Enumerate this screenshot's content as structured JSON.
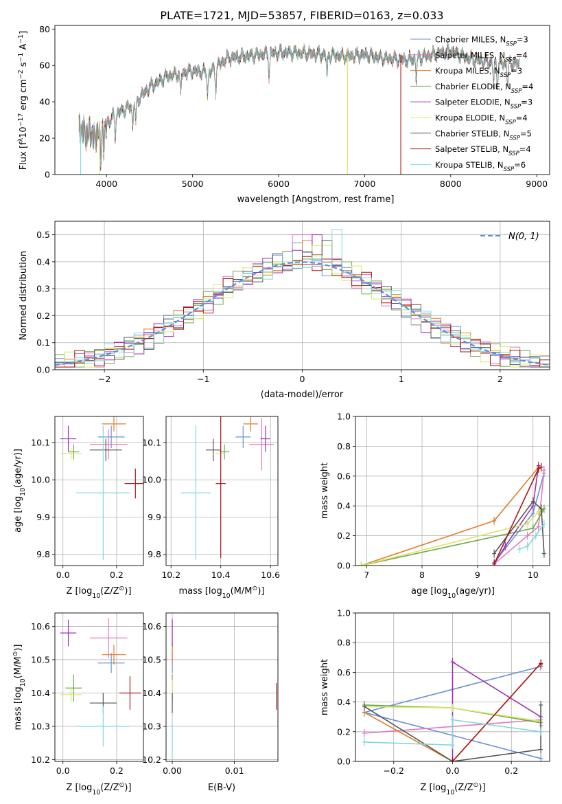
{
  "title": "PLATE=1721, MJD=53857, FIBERID=0163, z=0.033",
  "colors": [
    "#6a8fd8",
    "#e377c2",
    "#e07b2a",
    "#6aa84f",
    "#9b30b0",
    "#d8e860",
    "#555555",
    "#aa1515",
    "#80d8dc"
  ],
  "chart_data": [
    {
      "type": "line",
      "name": "spectrum",
      "xlabel": "wavelength [Angstrom, rest frame]",
      "ylabel": "Flux [f",
      "ylabel_parts": [
        "Flux [f",
        "λ",
        "10",
        "−17",
        " erg cm",
        "−2",
        " s",
        "−1",
        " A",
        "−1",
        "]"
      ],
      "xlim": [
        3400,
        9150
      ],
      "ylim": [
        0,
        82
      ],
      "xticks": [
        4000,
        5000,
        6000,
        7000,
        8000,
        9000
      ],
      "yticks": [
        0,
        20,
        40,
        60,
        80
      ],
      "grid": false,
      "legend": "upper right",
      "series": [
        {
          "name": "Chabrier MILES, N",
          "sub": "SSP",
          "suffix": "=3"
        },
        {
          "name": "Salpeter MILES, N",
          "sub": "SSP",
          "suffix": "=4"
        },
        {
          "name": "Kroupa MILES, N",
          "sub": "SSP",
          "suffix": "=3"
        },
        {
          "name": "Chabrier ELODIE, N",
          "sub": "SSP",
          "suffix": "=4"
        },
        {
          "name": "Salpeter ELODIE, N",
          "sub": "SSP",
          "suffix": "=3"
        },
        {
          "name": "Kroupa ELODIE, N",
          "sub": "SSP",
          "suffix": "=4"
        },
        {
          "name": "Chabrier STELIB, N",
          "sub": "SSP",
          "suffix": "=5"
        },
        {
          "name": "Salpeter STELIB, N",
          "sub": "SSP",
          "suffix": "=4"
        },
        {
          "name": "Kroupa STELIB, N",
          "sub": "SSP",
          "suffix": "=6"
        }
      ],
      "continuum": {
        "x": [
          3680,
          3800,
          3900,
          4000,
          4100,
          4300,
          4500,
          4700,
          5000,
          5200,
          5400,
          5600,
          5800,
          6000,
          6200,
          6500,
          6800,
          7000,
          7200,
          7500,
          7800,
          8000,
          8200,
          8400,
          8600,
          8800
        ],
        "y": [
          25,
          22,
          21,
          28,
          33,
          38,
          48,
          54,
          57,
          56,
          64,
          65,
          66,
          67,
          67,
          66,
          65,
          66,
          64,
          63,
          66,
          68,
          64,
          62,
          61,
          61
        ]
      },
      "absorption_lines": [
        3934,
        3969,
        4102,
        4304,
        4341,
        4861,
        5175,
        5270,
        5890,
        6563,
        7600,
        8498,
        8542,
        8662
      ],
      "dropouts": [
        {
          "x": 3700,
          "series": 8
        },
        {
          "x": 3920,
          "series": 5
        },
        {
          "x": 6800,
          "series": 5
        },
        {
          "x": 7420,
          "series": 7
        }
      ]
    },
    {
      "type": "line",
      "name": "residual_histogram",
      "xlabel": "(data-model)/error",
      "ylabel": "Normed distribution",
      "xlim": [
        -2.5,
        2.5
      ],
      "ylim": [
        0,
        0.55
      ],
      "xticks": [
        -2,
        -1,
        0,
        1,
        2
      ],
      "yticks": [
        0.0,
        0.1,
        0.2,
        0.3,
        0.4,
        0.5
      ],
      "grid": true,
      "legend": "upper right",
      "legend_label": "N(0, 1)",
      "gaussian": {
        "mu": 0,
        "sigma": 1
      },
      "bin_width": 0.1,
      "peaks": [
        0.47,
        0.5,
        0.48,
        0.41,
        0.5,
        0.46,
        0.48,
        0.41,
        0.52
      ],
      "tail": 0.02
    },
    {
      "type": "scatter",
      "name": "age_vs_Z",
      "xlabel": "Z [log",
      "xlabel_parts": [
        "Z [log",
        "10",
        "(Z/Z",
        "⊙",
        ")]"
      ],
      "ylabel": "age  [log",
      "ylabel_parts": [
        "age  [log",
        "10",
        "(age/yr)]"
      ],
      "xlim": [
        -0.03,
        0.3
      ],
      "ylim": [
        9.77,
        10.17
      ],
      "xticks": [
        0.0,
        0.2
      ],
      "yticks": [
        9.8,
        9.9,
        10.0,
        10.1
      ],
      "grid": true,
      "points": [
        {
          "x": 0.18,
          "y": 10.115,
          "xerr": 0.05,
          "yerr": 0.03
        },
        {
          "x": 0.17,
          "y": 10.095,
          "xerr": 0.07,
          "yerr": 0.04
        },
        {
          "x": 0.19,
          "y": 10.15,
          "xerr": 0.045,
          "yerr": 0.02
        },
        {
          "x": 0.04,
          "y": 10.075,
          "xerr": 0.02,
          "yerr": 0.02
        },
        {
          "x": 0.02,
          "y": 10.11,
          "xerr": 0.03,
          "yerr": 0.035
        },
        {
          "x": 0.03,
          "y": 10.07,
          "xerr": 0.04,
          "yerr": 0.015
        },
        {
          "x": 0.16,
          "y": 10.08,
          "xerr": 0.06,
          "yerr": 0.03
        },
        {
          "x": 0.27,
          "y": 9.99,
          "xerr": 0.04,
          "yerr": 0.04
        },
        {
          "x": 0.15,
          "y": 9.965,
          "xerr": 0.1,
          "yerr": 0.18
        }
      ]
    },
    {
      "type": "scatter",
      "name": "age_vs_mass",
      "xlabel": "mass [log",
      "xlabel_parts": [
        "mass [log",
        "10",
        "(M/M",
        "⊙",
        ")]"
      ],
      "xlim": [
        10.18,
        10.63
      ],
      "ylim": [
        9.77,
        10.17
      ],
      "xticks": [
        10.2,
        10.4,
        10.6
      ],
      "yticks": [
        9.8,
        9.9,
        10.0,
        10.1
      ],
      "grid": true,
      "points": [
        {
          "x": 10.49,
          "y": 10.115,
          "xerr": 0.03,
          "yerr": 0.03
        },
        {
          "x": 10.565,
          "y": 10.095,
          "xerr": 0.05,
          "yerr": 0.07
        },
        {
          "x": 10.52,
          "y": 10.15,
          "xerr": 0.03,
          "yerr": 0.02
        },
        {
          "x": 10.415,
          "y": 10.075,
          "xerr": 0.02,
          "yerr": 0.02
        },
        {
          "x": 10.58,
          "y": 10.11,
          "xerr": 0.02,
          "yerr": 0.035
        },
        {
          "x": 10.4,
          "y": 10.07,
          "xerr": 0.02,
          "yerr": 0.015
        },
        {
          "x": 10.37,
          "y": 10.08,
          "xerr": 0.03,
          "yerr": 0.03
        },
        {
          "x": 10.4,
          "y": 9.99,
          "xerr": 0.02,
          "yerr": 0.2
        },
        {
          "x": 10.3,
          "y": 9.965,
          "xerr": 0.06,
          "yerr": 0.18
        }
      ]
    },
    {
      "type": "line",
      "name": "mass_weight_vs_age",
      "xlabel": "age  [log",
      "xlabel_parts": [
        "age  [log",
        "10",
        "(age/yr)]"
      ],
      "ylabel": "mass weight",
      "xlim": [
        6.8,
        10.3
      ],
      "ylim": [
        0,
        1
      ],
      "xticks": [
        7,
        8,
        9,
        10
      ],
      "yticks": [
        0.0,
        0.2,
        0.4,
        0.6,
        0.8,
        1.0
      ],
      "grid": true,
      "series": [
        {
          "x": [
            9.3,
            10.0,
            10.2
          ],
          "y": [
            0.02,
            0.35,
            0.62
          ]
        },
        {
          "x": [
            9.3,
            9.9,
            10.1,
            10.2
          ],
          "y": [
            0.01,
            0.2,
            0.26,
            0.64
          ]
        },
        {
          "x": [
            6.9,
            9.3,
            10.1
          ],
          "y": [
            0.0,
            0.3,
            0.66
          ]
        },
        {
          "x": [
            6.9,
            10.0,
            10.2,
            10.1
          ],
          "y": [
            0.0,
            0.25,
            0.38,
            0.36
          ]
        },
        {
          "x": [
            9.3,
            9.5,
            10.0,
            10.1
          ],
          "y": [
            0.01,
            0.13,
            0.4,
            0.67
          ]
        },
        {
          "x": [
            6.9,
            9.9,
            10.1,
            10.15
          ],
          "y": [
            0.0,
            0.28,
            0.36,
            0.38
          ]
        },
        {
          "x": [
            9.3,
            10.0,
            10.15,
            10.2
          ],
          "y": [
            0.08,
            0.43,
            0.38,
            0.08
          ]
        },
        {
          "x": [
            9.3,
            10.1,
            10.15
          ],
          "y": [
            0.01,
            0.65,
            0.66
          ]
        },
        {
          "x": [
            9.75,
            9.9,
            10.05,
            10.2
          ],
          "y": [
            0.11,
            0.13,
            0.2,
            0.28
          ]
        }
      ]
    },
    {
      "type": "scatter",
      "name": "mass_vs_Z",
      "xlabel": "Z [log",
      "xlabel_parts": [
        "Z [log",
        "10",
        "(Z/Z",
        "⊙",
        ")]"
      ],
      "ylabel": "mass [log",
      "ylabel_parts": [
        "mass [log",
        "10",
        "(M/M",
        "⊙",
        ")]"
      ],
      "xlim": [
        -0.03,
        0.3
      ],
      "ylim": [
        10.195,
        10.64
      ],
      "xticks": [
        0.0,
        0.2
      ],
      "yticks": [
        10.2,
        10.3,
        10.4,
        10.5,
        10.6
      ],
      "grid": true,
      "points": [
        {
          "x": 0.18,
          "y": 10.49,
          "xerr": 0.05,
          "yerr": 0.03
        },
        {
          "x": 0.17,
          "y": 10.565,
          "xerr": 0.07,
          "yerr": 0.06
        },
        {
          "x": 0.19,
          "y": 10.515,
          "xerr": 0.045,
          "yerr": 0.03
        },
        {
          "x": 0.04,
          "y": 10.415,
          "xerr": 0.03,
          "yerr": 0.04
        },
        {
          "x": 0.02,
          "y": 10.58,
          "xerr": 0.03,
          "yerr": 0.04
        },
        {
          "x": 0.03,
          "y": 10.395,
          "xerr": 0.04,
          "yerr": 0.02
        },
        {
          "x": 0.15,
          "y": 10.37,
          "xerr": 0.05,
          "yerr": 0.03
        },
        {
          "x": 0.25,
          "y": 10.4,
          "xerr": 0.04,
          "yerr": 0.05
        },
        {
          "x": 0.15,
          "y": 10.3,
          "xerr": 0.1,
          "yerr": 0.06
        }
      ]
    },
    {
      "type": "scatter",
      "name": "mass_vs_ebv",
      "xlabel": "E(B-V)",
      "xlim": [
        -0.001,
        0.017
      ],
      "ylim": [
        10.195,
        10.64
      ],
      "xticks": [
        0.0,
        0.01
      ],
      "yticks": [
        10.2,
        10.3,
        10.4,
        10.5,
        10.6
      ],
      "grid": true,
      "points": [
        {
          "x": 0.0,
          "y": 10.49,
          "yerr": 0.03
        },
        {
          "x": 0.0,
          "y": 10.565,
          "yerr": 0.06
        },
        {
          "x": 0.0,
          "y": 10.515,
          "yerr": 0.03
        },
        {
          "x": 0.0,
          "y": 10.415,
          "yerr": 0.04
        },
        {
          "x": 0.0,
          "y": 10.58,
          "yerr": 0.04
        },
        {
          "x": 0.0,
          "y": 10.42,
          "yerr": 0.02
        },
        {
          "x": 0.0,
          "y": 10.37,
          "yerr": 0.03
        },
        {
          "x": 0.0168,
          "y": 10.39,
          "yerr": 0.04
        },
        {
          "x": 0.0,
          "y": 10.25,
          "yerr": 0.06
        }
      ]
    },
    {
      "type": "line",
      "name": "mass_weight_vs_Z",
      "xlabel": "Z [log",
      "xlabel_parts": [
        "Z [log",
        "10",
        "(Z/Z",
        "⊙",
        ")]"
      ],
      "ylabel": "mass weight",
      "xlim": [
        -0.33,
        0.33
      ],
      "ylim": [
        0,
        1
      ],
      "xticks": [
        -0.2,
        0.0,
        0.2
      ],
      "yticks": [
        0.0,
        0.2,
        0.4,
        0.6,
        0.8,
        1.0
      ],
      "grid": true,
      "series": [
        {
          "x": [
            0.3,
            -0.3,
            0.3
          ],
          "y": [
            0.02,
            0.33,
            0.64
          ]
        },
        {
          "x": [
            -0.3,
            0.3,
            0.3
          ],
          "y": [
            0.19,
            0.28,
            0.24
          ]
        },
        {
          "x": [
            -0.3,
            0.0,
            0.3
          ],
          "y": [
            0.33,
            0.0,
            0.66
          ]
        },
        {
          "x": [
            -0.3,
            0.0,
            0.3
          ],
          "y": [
            0.38,
            0.36,
            0.26
          ]
        },
        {
          "x": [
            0.0,
            0.0,
            0.3
          ],
          "y": [
            0.0,
            0.67,
            0.3
          ]
        },
        {
          "x": [
            -0.3,
            0.0,
            0.3
          ],
          "y": [
            0.37,
            0.36,
            0.27
          ]
        },
        {
          "x": [
            -0.3,
            0.0,
            0.3,
            0.3
          ],
          "y": [
            0.37,
            0.0,
            0.08,
            0.38
          ]
        },
        {
          "x": [
            0.0,
            0.3,
            0.3
          ],
          "y": [
            0.0,
            0.66,
            0.65
          ]
        },
        {
          "x": [
            -0.3,
            0.0,
            0.0,
            0.3
          ],
          "y": [
            0.13,
            0.11,
            0.28,
            0.2
          ]
        }
      ]
    }
  ]
}
